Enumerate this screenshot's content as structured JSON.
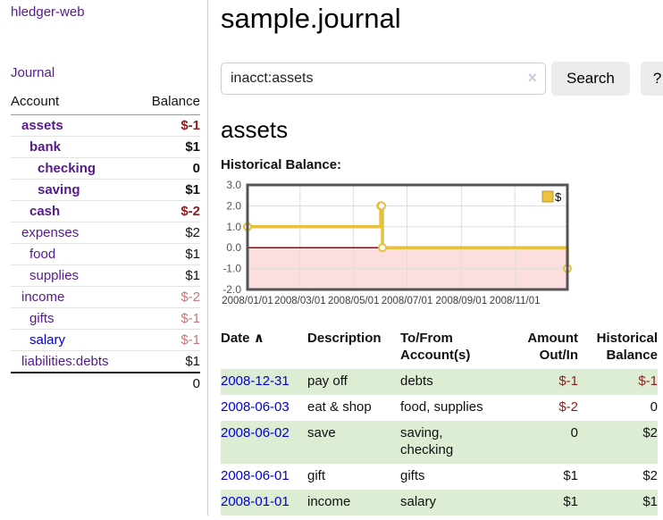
{
  "brand": {
    "label": "hledger-web"
  },
  "nav": {
    "journal": "Journal"
  },
  "sidebar": {
    "headers": {
      "account": "Account",
      "balance": "Balance"
    },
    "accounts": [
      {
        "name": "assets",
        "balance": "$-1",
        "depth": 1,
        "bold": true,
        "neg": "strong"
      },
      {
        "name": "bank",
        "balance": "$1",
        "depth": 2,
        "bold": true,
        "neg": null
      },
      {
        "name": "checking",
        "balance": "0",
        "depth": 3,
        "bold": true,
        "neg": null
      },
      {
        "name": "saving",
        "balance": "$1",
        "depth": 3,
        "bold": true,
        "neg": null
      },
      {
        "name": "cash",
        "balance": "$-2",
        "depth": 2,
        "bold": true,
        "neg": "strong"
      },
      {
        "name": "expenses",
        "balance": "$2",
        "depth": 1,
        "bold": false,
        "neg": null
      },
      {
        "name": "food",
        "balance": "$1",
        "depth": 2,
        "bold": false,
        "neg": null
      },
      {
        "name": "supplies",
        "balance": "$1",
        "depth": 2,
        "bold": false,
        "neg": null
      },
      {
        "name": "income",
        "balance": "$-2",
        "depth": 1,
        "bold": false,
        "neg": "faded"
      },
      {
        "name": "gifts",
        "balance": "$-1",
        "depth": 2,
        "bold": false,
        "neg": "faded"
      },
      {
        "name": "salary",
        "balance": "$-1",
        "depth": 2,
        "bold": false,
        "neg": "faded",
        "link": "blue"
      },
      {
        "name": "liabilities:debts",
        "balance": "$1",
        "depth": 1,
        "bold": false,
        "neg": null
      }
    ],
    "total": "0"
  },
  "main": {
    "title": "sample.journal",
    "search": {
      "value": "inacct:assets",
      "clear_icon": "×",
      "search_button": "Search",
      "help_button": "?"
    },
    "account_heading": "assets",
    "chart_title": "Historical Balance:"
  },
  "chart_data": {
    "type": "line",
    "title": "Historical Balance",
    "step": true,
    "legend": [
      {
        "name": "$",
        "color": "#edc240"
      }
    ],
    "legend_position": "top-right",
    "grid": true,
    "x_range": [
      "2008-01-01",
      "2008-12-31"
    ],
    "ylim": [
      -2,
      3
    ],
    "y_ticks": [
      "3.0",
      "2.0",
      "1.0",
      "0.0",
      "-1.0",
      "-2.0"
    ],
    "x_ticks": [
      "2008/01/01",
      "2008/03/01",
      "2008/05/01",
      "2008/07/01",
      "2008/09/01",
      "2008/11/01"
    ],
    "points": [
      {
        "date": "2008-01-01",
        "value": 1
      },
      {
        "date": "2008-06-01",
        "value": 2
      },
      {
        "date": "2008-06-02",
        "value": 2
      },
      {
        "date": "2008-06-03",
        "value": 0
      },
      {
        "date": "2008-12-31",
        "value": -1
      }
    ],
    "colors": {
      "series": "#e6c03f",
      "marker_fill": "#ffffff",
      "negative_band": "#fcdede",
      "zero_line": "#a40000",
      "grid": "#dcdcdc",
      "border": "#545454"
    }
  },
  "register": {
    "columns": {
      "date": "Date",
      "sort_icon": "∧",
      "description": "Description",
      "accounts": "To/From Account(s)",
      "amount": "Amount Out/In",
      "balance": "Historical Balance"
    },
    "rows": [
      {
        "date": "2008-12-31",
        "description": "pay off",
        "accounts": "debts",
        "amount": "$-1",
        "balance": "$-1",
        "amount_neg": true,
        "balance_neg": true
      },
      {
        "date": "2008-06-03",
        "description": "eat & shop",
        "accounts": "food, supplies",
        "amount": "$-2",
        "balance": "0",
        "amount_neg": true,
        "balance_neg": false
      },
      {
        "date": "2008-06-02",
        "description": "save",
        "accounts": "saving, checking",
        "amount": "0",
        "balance": "$2",
        "amount_neg": false,
        "balance_neg": false
      },
      {
        "date": "2008-06-01",
        "description": "gift",
        "accounts": "gifts",
        "amount": "$1",
        "balance": "$2",
        "amount_neg": false,
        "balance_neg": false
      },
      {
        "date": "2008-01-01",
        "description": "income",
        "accounts": "salary",
        "amount": "$1",
        "balance": "$1",
        "amount_neg": false,
        "balance_neg": false
      }
    ]
  }
}
